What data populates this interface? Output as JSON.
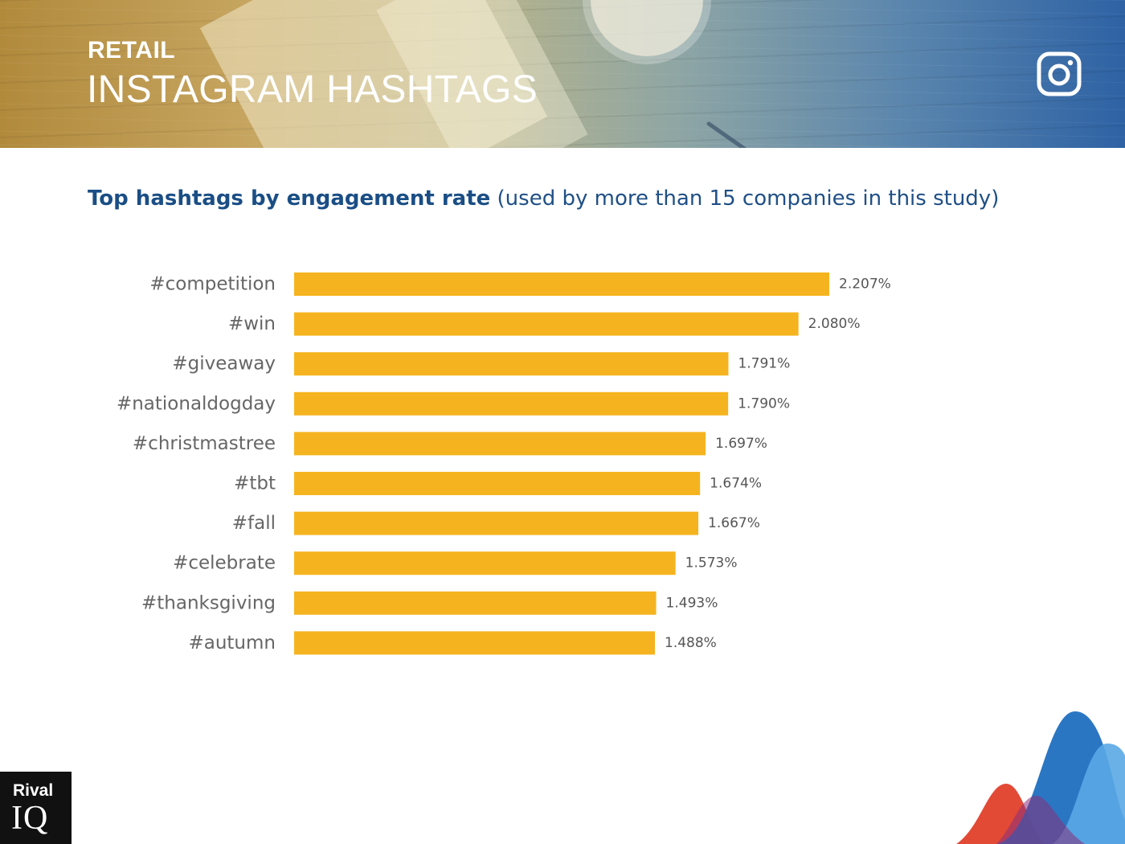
{
  "header": {
    "industry": "RETAIL",
    "title": "INSTAGRAM HASHTAGS",
    "social_icon": "instagram-icon"
  },
  "chart_heading": {
    "bold": "Top hashtags by engagement rate",
    "sub": "(used by more than 15 companies in this study)"
  },
  "chart_data": {
    "type": "bar",
    "orientation": "horizontal",
    "title": "Top hashtags by engagement rate (used by more than 15 companies in this study)",
    "categories": [
      "#competition",
      "#win",
      "#giveaway",
      "#nationaldogday",
      "#christmastree",
      "#tbt",
      "#fall",
      "#celebrate",
      "#thanksgiving",
      "#autumn"
    ],
    "values": [
      2.207,
      2.08,
      1.791,
      1.79,
      1.697,
      1.674,
      1.667,
      1.573,
      1.493,
      1.488
    ],
    "value_labels": [
      "2.207%",
      "2.080%",
      "1.791%",
      "1.790%",
      "1.697%",
      "1.674%",
      "1.667%",
      "1.573%",
      "1.493%",
      "1.488%"
    ],
    "xlim": [
      0,
      2.207
    ],
    "grid": false,
    "bar_color": "#f5b41f"
  },
  "footer": {
    "logo_top": "Rival",
    "logo_bottom": "IQ"
  },
  "colors": {
    "heading": "#1a4e85",
    "label": "#666666",
    "value_label": "#555555",
    "bar": "#f5b41f"
  }
}
